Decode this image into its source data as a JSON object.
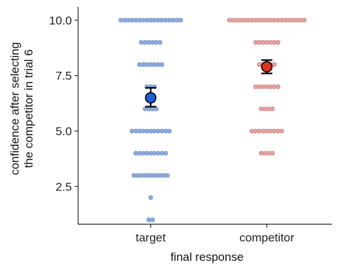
{
  "chart_data": {
    "type": "scatter",
    "subtype": "beeswarm with mean and error bars",
    "xlabel": "final response",
    "ylabel_lines": [
      "confidence after selecting",
      "the competitor in trial 6"
    ],
    "categories": [
      "target",
      "competitor"
    ],
    "ylim": [
      0.8,
      10.6
    ],
    "yticks": [
      2.5,
      5.0,
      7.5,
      10.0
    ],
    "ytick_labels": [
      "2.5",
      "5.0",
      "7.5",
      "10.0"
    ],
    "grid": false,
    "legend": "none",
    "series": [
      {
        "category": "target",
        "point_color": "#8fa9dd",
        "point_edge": "#6f8fc7",
        "mean_color": "#1f5fd6",
        "mean": 6.5,
        "error": [
          6.1,
          6.95
        ],
        "points": [
          {
            "y": 10,
            "count": 17
          },
          {
            "y": 9,
            "count": 6
          },
          {
            "y": 8,
            "count": 7
          },
          {
            "y": 7,
            "count": 3
          },
          {
            "y": 6,
            "count": 4
          },
          {
            "y": 5,
            "count": 11
          },
          {
            "y": 4,
            "count": 9
          },
          {
            "y": 3,
            "count": 10
          },
          {
            "y": 2,
            "count": 1
          },
          {
            "y": 1,
            "count": 2
          }
        ]
      },
      {
        "category": "competitor",
        "point_color": "#e3a3a0",
        "point_edge": "#c47f7c",
        "mean_color": "#e0321f",
        "mean": 7.9,
        "error": [
          7.6,
          8.2
        ],
        "points": [
          {
            "y": 10,
            "count": 21
          },
          {
            "y": 9,
            "count": 7
          },
          {
            "y": 8,
            "count": 5
          },
          {
            "y": 7,
            "count": 7
          },
          {
            "y": 6,
            "count": 4
          },
          {
            "y": 5,
            "count": 9
          },
          {
            "y": 4,
            "count": 4
          }
        ]
      }
    ]
  }
}
